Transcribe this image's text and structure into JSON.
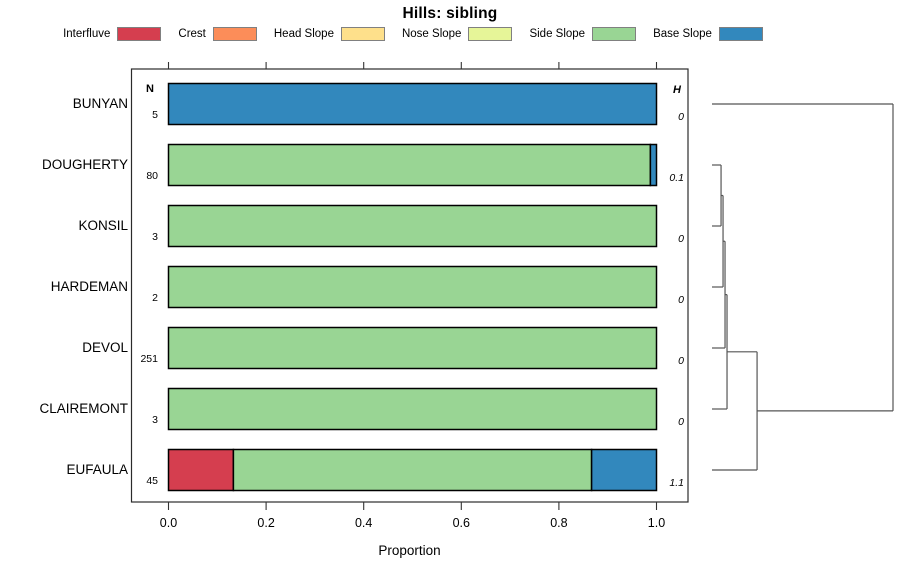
{
  "chart_data": {
    "type": "bar",
    "orientation": "horizontal",
    "stacked": true,
    "title": "Hills: sibling",
    "xlabel": "Proportion",
    "n_header": "N",
    "h_header": "H",
    "xlim": [
      0,
      1
    ],
    "grid": false,
    "legend_position": "top",
    "xticks": [
      {
        "value": 0.0,
        "label": "0.0"
      },
      {
        "value": 0.2,
        "label": "0.2"
      },
      {
        "value": 0.4,
        "label": "0.4"
      },
      {
        "value": 0.6,
        "label": "0.6"
      },
      {
        "value": 0.8,
        "label": "0.8"
      },
      {
        "value": 1.0,
        "label": "1.0"
      }
    ],
    "categories": [
      "BUNYAN",
      "DOUGHERTY",
      "KONSIL",
      "HARDEMAN",
      "DEVOL",
      "CLAIREMONT",
      "EUFAULA"
    ],
    "n_values": [
      "5",
      "80",
      "3",
      "2",
      "251",
      "3",
      "45"
    ],
    "h_values": [
      "0",
      "0.1",
      "0",
      "0",
      "0",
      "0",
      "1.1"
    ],
    "legend": [
      {
        "label": "Interfluve",
        "color": "#D53E4F"
      },
      {
        "label": "Crest",
        "color": "#FC8D59"
      },
      {
        "label": "Head Slope",
        "color": "#FEE08B"
      },
      {
        "label": "Nose Slope",
        "color": "#E6F598"
      },
      {
        "label": "Side Slope",
        "color": "#99D594"
      },
      {
        "label": "Base Slope",
        "color": "#3288BD"
      }
    ],
    "series": [
      {
        "name": "Interfluve",
        "color": "#D53E4F",
        "values": [
          0,
          0,
          0,
          0,
          0,
          0,
          0.133
        ]
      },
      {
        "name": "Crest",
        "color": "#FC8D59",
        "values": [
          0,
          0,
          0,
          0,
          0,
          0,
          0
        ]
      },
      {
        "name": "Head Slope",
        "color": "#FEE08B",
        "values": [
          0,
          0,
          0,
          0,
          0,
          0,
          0
        ]
      },
      {
        "name": "Nose Slope",
        "color": "#E6F598",
        "values": [
          0,
          0,
          0,
          0,
          0,
          0,
          0
        ]
      },
      {
        "name": "Side Slope",
        "color": "#99D594",
        "values": [
          0,
          0.9875,
          1,
          1,
          1,
          1,
          0.734
        ]
      },
      {
        "name": "Base Slope",
        "color": "#3288BD",
        "values": [
          1,
          0.0125,
          0,
          0,
          0,
          0,
          0.133
        ]
      }
    ],
    "dendrogram": {
      "merges": [
        {
          "a": "DOUGHERTY",
          "b": "KONSIL",
          "height": 0.05
        },
        {
          "a": "cluster",
          "b": "HARDEMAN",
          "height": 0.061
        },
        {
          "a": "cluster",
          "b": "DEVOL",
          "height": 0.072
        },
        {
          "a": "cluster",
          "b": "CLAIREMONT",
          "height": 0.083
        },
        {
          "a": "cluster",
          "b": "EUFAULA",
          "height": 0.249
        },
        {
          "a": "cluster",
          "b": "BUNYAN",
          "height": 1.0
        }
      ]
    },
    "colors": {
      "bar_border": "#000000",
      "panel_border": "#2b2b2b",
      "tick": "#333333",
      "dendrogram_line": "#555555",
      "legend_border": "#808080",
      "background": "#ffffff"
    }
  }
}
